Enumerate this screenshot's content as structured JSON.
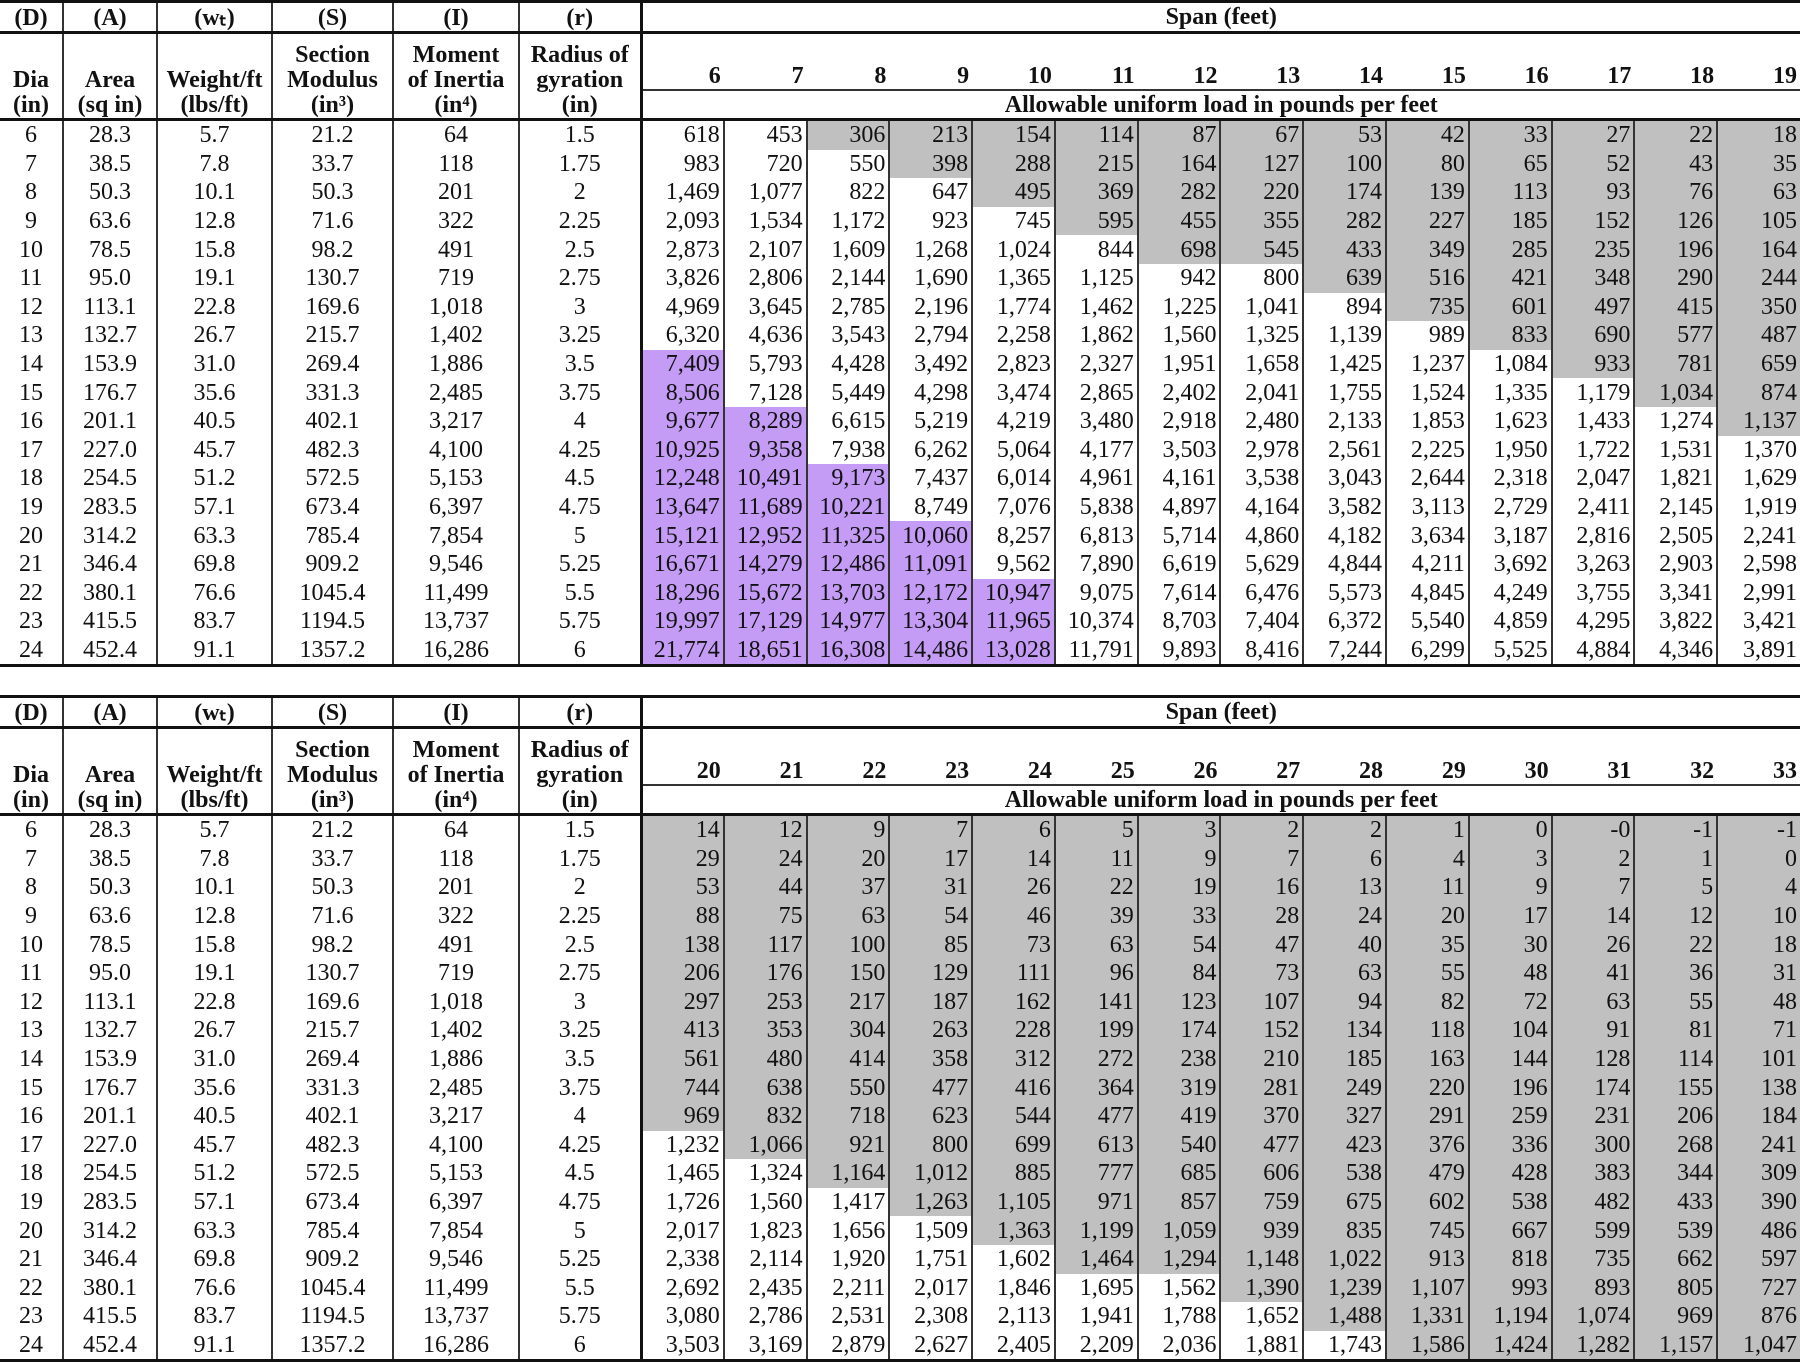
{
  "colors": {
    "gray_shading": "#c0c0c0",
    "purple_shading": "#c49cf6"
  },
  "header": {
    "codes": [
      "(D)",
      "(A)",
      "(wₜ)",
      "(S)",
      "(I)",
      "(r)"
    ],
    "labels": [
      "Dia\n(in)",
      "Area\n(sq in)",
      "Weight/ft\n(lbs/ft)",
      "Section\nModulus\n(in³)",
      "Moment\nof Inertia\n(in⁴)",
      "Radius of\ngyration\n(in)"
    ],
    "span_title": "Span (feet)",
    "allowable_title": "Allowable uniform load in pounds per feet"
  },
  "properties": [
    [
      "6",
      "28.3",
      "5.7",
      "21.2",
      "64",
      "1.5"
    ],
    [
      "7",
      "38.5",
      "7.8",
      "33.7",
      "118",
      "1.75"
    ],
    [
      "8",
      "50.3",
      "10.1",
      "50.3",
      "201",
      "2"
    ],
    [
      "9",
      "63.6",
      "12.8",
      "71.6",
      "322",
      "2.25"
    ],
    [
      "10",
      "78.5",
      "15.8",
      "98.2",
      "491",
      "2.5"
    ],
    [
      "11",
      "95.0",
      "19.1",
      "130.7",
      "719",
      "2.75"
    ],
    [
      "12",
      "113.1",
      "22.8",
      "169.6",
      "1,018",
      "3"
    ],
    [
      "13",
      "132.7",
      "26.7",
      "215.7",
      "1,402",
      "3.25"
    ],
    [
      "14",
      "153.9",
      "31.0",
      "269.4",
      "1,886",
      "3.5"
    ],
    [
      "15",
      "176.7",
      "35.6",
      "331.3",
      "2,485",
      "3.75"
    ],
    [
      "16",
      "201.1",
      "40.5",
      "402.1",
      "3,217",
      "4"
    ],
    [
      "17",
      "227.0",
      "45.7",
      "482.3",
      "4,100",
      "4.25"
    ],
    [
      "18",
      "254.5",
      "51.2",
      "572.5",
      "5,153",
      "4.5"
    ],
    [
      "19",
      "283.5",
      "57.1",
      "673.4",
      "6,397",
      "4.75"
    ],
    [
      "20",
      "314.2",
      "63.3",
      "785.4",
      "7,854",
      "5"
    ],
    [
      "21",
      "346.4",
      "69.8",
      "909.2",
      "9,546",
      "5.25"
    ],
    [
      "22",
      "380.1",
      "76.6",
      "1045.4",
      "11,499",
      "5.5"
    ],
    [
      "23",
      "415.5",
      "83.7",
      "1194.5",
      "13,737",
      "5.75"
    ],
    [
      "24",
      "452.4",
      "91.1",
      "1357.2",
      "16,286",
      "6"
    ]
  ],
  "tables": [
    {
      "spans": [
        "6",
        "7",
        "8",
        "9",
        "10",
        "11",
        "12",
        "13",
        "14",
        "15",
        "16",
        "17",
        "18",
        "19"
      ],
      "gray_through_dia": [
        null,
        null,
        6,
        7,
        8,
        9,
        10,
        10,
        11,
        12,
        13,
        14,
        15,
        16
      ],
      "purple_from_dia": [
        14,
        16,
        18,
        20,
        22,
        null,
        null,
        null,
        null,
        null,
        null,
        null,
        null,
        null
      ],
      "loads": [
        [
          "618",
          "453",
          "306",
          "213",
          "154",
          "114",
          "87",
          "67",
          "53",
          "42",
          "33",
          "27",
          "22",
          "18"
        ],
        [
          "983",
          "720",
          "550",
          "398",
          "288",
          "215",
          "164",
          "127",
          "100",
          "80",
          "65",
          "52",
          "43",
          "35"
        ],
        [
          "1,469",
          "1,077",
          "822",
          "647",
          "495",
          "369",
          "282",
          "220",
          "174",
          "139",
          "113",
          "93",
          "76",
          "63"
        ],
        [
          "2,093",
          "1,534",
          "1,172",
          "923",
          "745",
          "595",
          "455",
          "355",
          "282",
          "227",
          "185",
          "152",
          "126",
          "105"
        ],
        [
          "2,873",
          "2,107",
          "1,609",
          "1,268",
          "1,024",
          "844",
          "698",
          "545",
          "433",
          "349",
          "285",
          "235",
          "196",
          "164"
        ],
        [
          "3,826",
          "2,806",
          "2,144",
          "1,690",
          "1,365",
          "1,125",
          "942",
          "800",
          "639",
          "516",
          "421",
          "348",
          "290",
          "244"
        ],
        [
          "4,969",
          "3,645",
          "2,785",
          "2,196",
          "1,774",
          "1,462",
          "1,225",
          "1,041",
          "894",
          "735",
          "601",
          "497",
          "415",
          "350"
        ],
        [
          "6,320",
          "4,636",
          "3,543",
          "2,794",
          "2,258",
          "1,862",
          "1,560",
          "1,325",
          "1,139",
          "989",
          "833",
          "690",
          "577",
          "487"
        ],
        [
          "7,409",
          "5,793",
          "4,428",
          "3,492",
          "2,823",
          "2,327",
          "1,951",
          "1,658",
          "1,425",
          "1,237",
          "1,084",
          "933",
          "781",
          "659"
        ],
        [
          "8,506",
          "7,128",
          "5,449",
          "4,298",
          "3,474",
          "2,865",
          "2,402",
          "2,041",
          "1,755",
          "1,524",
          "1,335",
          "1,179",
          "1,034",
          "874"
        ],
        [
          "9,677",
          "8,289",
          "6,615",
          "5,219",
          "4,219",
          "3,480",
          "2,918",
          "2,480",
          "2,133",
          "1,853",
          "1,623",
          "1,433",
          "1,274",
          "1,137"
        ],
        [
          "10,925",
          "9,358",
          "7,938",
          "6,262",
          "5,064",
          "4,177",
          "3,503",
          "2,978",
          "2,561",
          "2,225",
          "1,950",
          "1,722",
          "1,531",
          "1,370"
        ],
        [
          "12,248",
          "10,491",
          "9,173",
          "7,437",
          "6,014",
          "4,961",
          "4,161",
          "3,538",
          "3,043",
          "2,644",
          "2,318",
          "2,047",
          "1,821",
          "1,629"
        ],
        [
          "13,647",
          "11,689",
          "10,221",
          "8,749",
          "7,076",
          "5,838",
          "4,897",
          "4,164",
          "3,582",
          "3,113",
          "2,729",
          "2,411",
          "2,145",
          "1,919"
        ],
        [
          "15,121",
          "12,952",
          "11,325",
          "10,060",
          "8,257",
          "6,813",
          "5,714",
          "4,860",
          "4,182",
          "3,634",
          "3,187",
          "2,816",
          "2,505",
          "2,241"
        ],
        [
          "16,671",
          "14,279",
          "12,486",
          "11,091",
          "9,562",
          "7,890",
          "6,619",
          "5,629",
          "4,844",
          "4,211",
          "3,692",
          "3,263",
          "2,903",
          "2,598"
        ],
        [
          "18,296",
          "15,672",
          "13,703",
          "12,172",
          "10,947",
          "9,075",
          "7,614",
          "6,476",
          "5,573",
          "4,845",
          "4,249",
          "3,755",
          "3,341",
          "2,991"
        ],
        [
          "19,997",
          "17,129",
          "14,977",
          "13,304",
          "11,965",
          "10,374",
          "8,703",
          "7,404",
          "6,372",
          "5,540",
          "4,859",
          "4,295",
          "3,822",
          "3,421"
        ],
        [
          "21,774",
          "18,651",
          "16,308",
          "14,486",
          "13,028",
          "11,791",
          "9,893",
          "8,416",
          "7,244",
          "6,299",
          "5,525",
          "4,884",
          "4,346",
          "3,891"
        ]
      ]
    },
    {
      "spans": [
        "20",
        "21",
        "22",
        "23",
        "24",
        "25",
        "26",
        "27",
        "28",
        "29",
        "30",
        "31",
        "32",
        "33"
      ],
      "gray_through_dia": [
        16,
        17,
        18,
        19,
        20,
        21,
        21,
        22,
        23,
        24,
        24,
        24,
        24,
        24
      ],
      "purple_from_dia": [
        null,
        null,
        null,
        null,
        null,
        null,
        null,
        null,
        null,
        null,
        null,
        null,
        null,
        null
      ],
      "loads": [
        [
          "14",
          "12",
          "9",
          "7",
          "6",
          "5",
          "3",
          "2",
          "2",
          "1",
          "0",
          "-0",
          "-1",
          "-1"
        ],
        [
          "29",
          "24",
          "20",
          "17",
          "14",
          "11",
          "9",
          "7",
          "6",
          "4",
          "3",
          "2",
          "1",
          "0"
        ],
        [
          "53",
          "44",
          "37",
          "31",
          "26",
          "22",
          "19",
          "16",
          "13",
          "11",
          "9",
          "7",
          "5",
          "4"
        ],
        [
          "88",
          "75",
          "63",
          "54",
          "46",
          "39",
          "33",
          "28",
          "24",
          "20",
          "17",
          "14",
          "12",
          "10"
        ],
        [
          "138",
          "117",
          "100",
          "85",
          "73",
          "63",
          "54",
          "47",
          "40",
          "35",
          "30",
          "26",
          "22",
          "18"
        ],
        [
          "206",
          "176",
          "150",
          "129",
          "111",
          "96",
          "84",
          "73",
          "63",
          "55",
          "48",
          "41",
          "36",
          "31"
        ],
        [
          "297",
          "253",
          "217",
          "187",
          "162",
          "141",
          "123",
          "107",
          "94",
          "82",
          "72",
          "63",
          "55",
          "48"
        ],
        [
          "413",
          "353",
          "304",
          "263",
          "228",
          "199",
          "174",
          "152",
          "134",
          "118",
          "104",
          "91",
          "81",
          "71"
        ],
        [
          "561",
          "480",
          "414",
          "358",
          "312",
          "272",
          "238",
          "210",
          "185",
          "163",
          "144",
          "128",
          "114",
          "101"
        ],
        [
          "744",
          "638",
          "550",
          "477",
          "416",
          "364",
          "319",
          "281",
          "249",
          "220",
          "196",
          "174",
          "155",
          "138"
        ],
        [
          "969",
          "832",
          "718",
          "623",
          "544",
          "477",
          "419",
          "370",
          "327",
          "291",
          "259",
          "231",
          "206",
          "184"
        ],
        [
          "1,232",
          "1,066",
          "921",
          "800",
          "699",
          "613",
          "540",
          "477",
          "423",
          "376",
          "336",
          "300",
          "268",
          "241"
        ],
        [
          "1,465",
          "1,324",
          "1,164",
          "1,012",
          "885",
          "777",
          "685",
          "606",
          "538",
          "479",
          "428",
          "383",
          "344",
          "309"
        ],
        [
          "1,726",
          "1,560",
          "1,417",
          "1,263",
          "1,105",
          "971",
          "857",
          "759",
          "675",
          "602",
          "538",
          "482",
          "433",
          "390"
        ],
        [
          "2,017",
          "1,823",
          "1,656",
          "1,509",
          "1,363",
          "1,199",
          "1,059",
          "939",
          "835",
          "745",
          "667",
          "599",
          "539",
          "486"
        ],
        [
          "2,338",
          "2,114",
          "1,920",
          "1,751",
          "1,602",
          "1,464",
          "1,294",
          "1,148",
          "1,022",
          "913",
          "818",
          "735",
          "662",
          "597"
        ],
        [
          "2,692",
          "2,435",
          "2,211",
          "2,017",
          "1,846",
          "1,695",
          "1,562",
          "1,390",
          "1,239",
          "1,107",
          "993",
          "893",
          "805",
          "727"
        ],
        [
          "3,080",
          "2,786",
          "2,531",
          "2,308",
          "2,113",
          "1,941",
          "1,788",
          "1,652",
          "1,488",
          "1,331",
          "1,194",
          "1,074",
          "969",
          "876"
        ],
        [
          "3,503",
          "3,169",
          "2,879",
          "2,627",
          "2,405",
          "2,209",
          "2,036",
          "1,881",
          "1,743",
          "1,586",
          "1,424",
          "1,282",
          "1,157",
          "1,047"
        ]
      ]
    }
  ]
}
